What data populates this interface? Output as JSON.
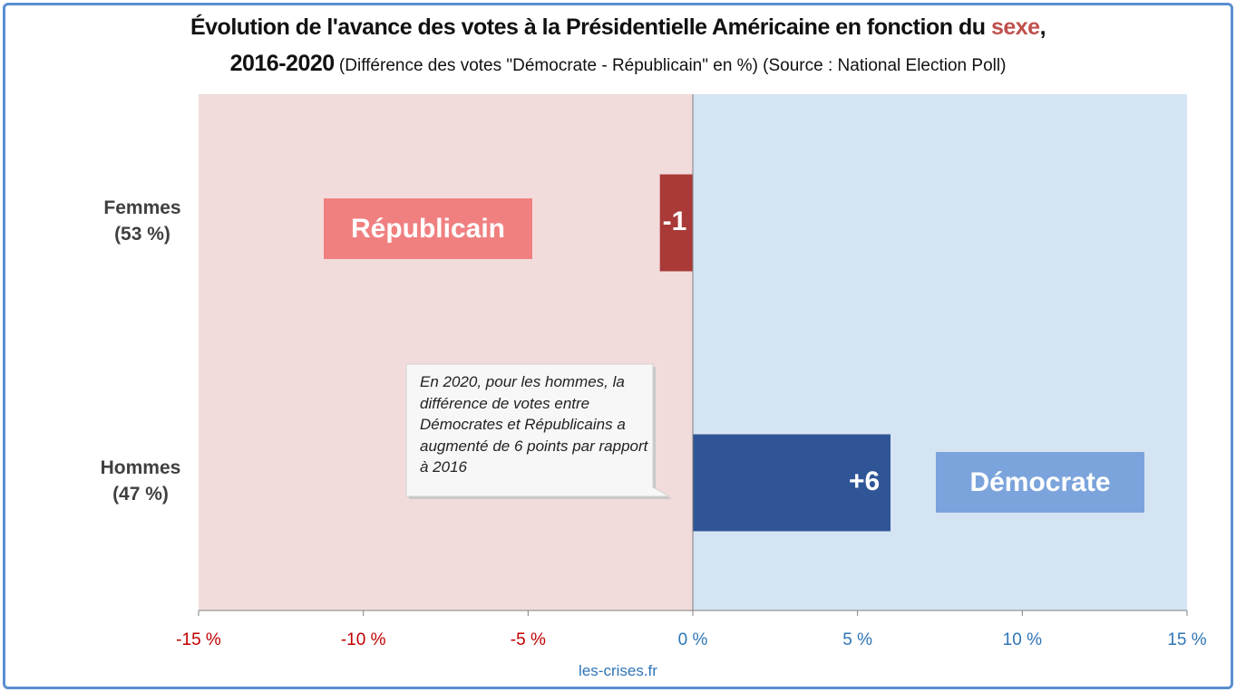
{
  "title": {
    "line1": "Évolution de l'avance des votes à la Présidentielle Américaine en fonction du ",
    "highlight": "sexe",
    "line1_end": ",",
    "year": "2016-2020",
    "subtitle": " (Différence des votes \"Démocrate - Républicain\" en %) (Source : National Election Poll)"
  },
  "chart_data": {
    "type": "bar",
    "orientation": "horizontal",
    "categories": [
      "Femmes\n(53 %)",
      "Hommes\n(47 %)"
    ],
    "values": [
      -1,
      6
    ],
    "value_labels": [
      "-1",
      "+6"
    ],
    "xlim": [
      -15,
      15
    ],
    "xticks": [
      -15,
      -10,
      -5,
      0,
      5,
      10,
      15
    ],
    "tick_labels": [
      "-15 %",
      "-10 %",
      "-5 %",
      "0 %",
      "5 %",
      "10 %",
      "15 %"
    ],
    "annotations": [
      "Républicain",
      "Démocrate"
    ],
    "colors": {
      "negative_bar": "#a93a38",
      "positive_bar": "#2f5597",
      "negative_zone": "#f2dcdb",
      "positive_zone": "#d5e4f2",
      "negative_tick": "#c00000",
      "positive_tick": "#2e75b6",
      "republicain_box": "#f08080",
      "democrate_box": "#7ca4dc"
    }
  },
  "y_labels": [
    {
      "name": "Femmes",
      "pct": "(53 %)"
    },
    {
      "name": "Hommes",
      "pct": "(47 %)"
    }
  ],
  "callout": "En 2020, pour les hommes, la différence de votes entre Démocrates et Républicains a augmenté de 6 points par rapport à 2016",
  "footer": "les-crises.fr"
}
